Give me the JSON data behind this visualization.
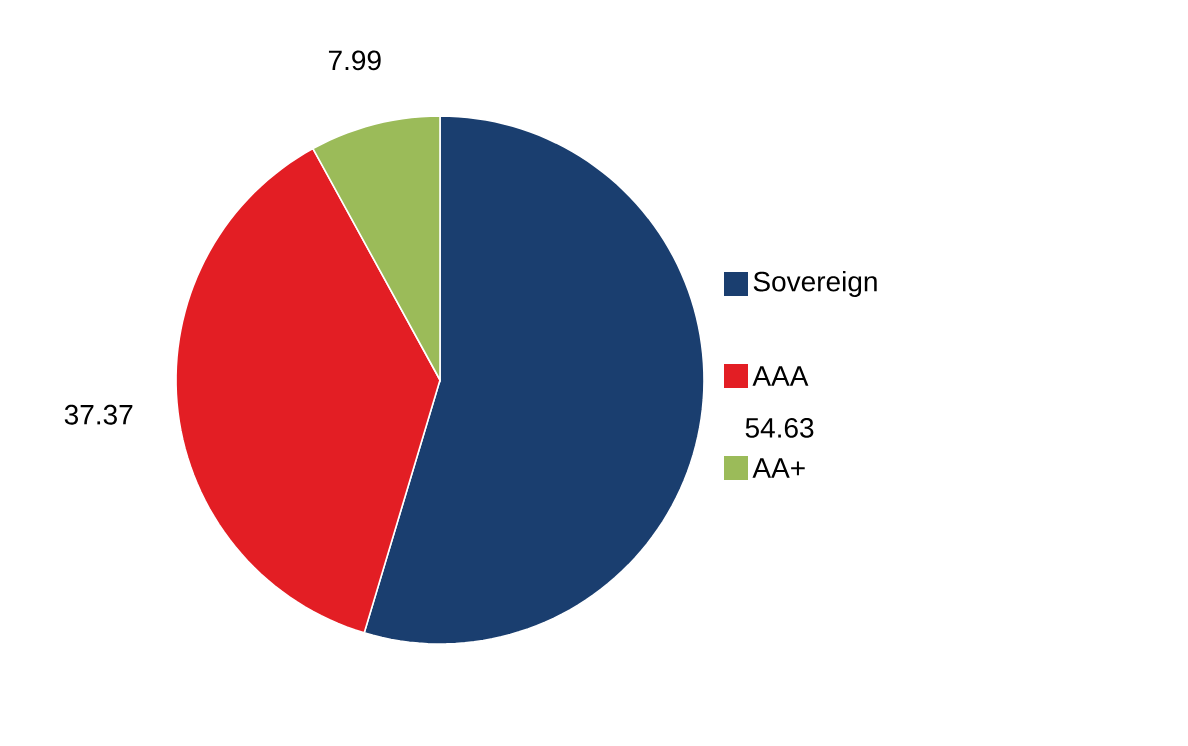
{
  "chart_data": {
    "type": "pie",
    "categories": [
      "Sovereign",
      "AAA",
      "AA+"
    ],
    "values": [
      54.63,
      37.37,
      7.99
    ],
    "colors": [
      "#1a3e6f",
      "#e31e24",
      "#9bbb59"
    ],
    "data_labels": true,
    "legend": "right"
  }
}
